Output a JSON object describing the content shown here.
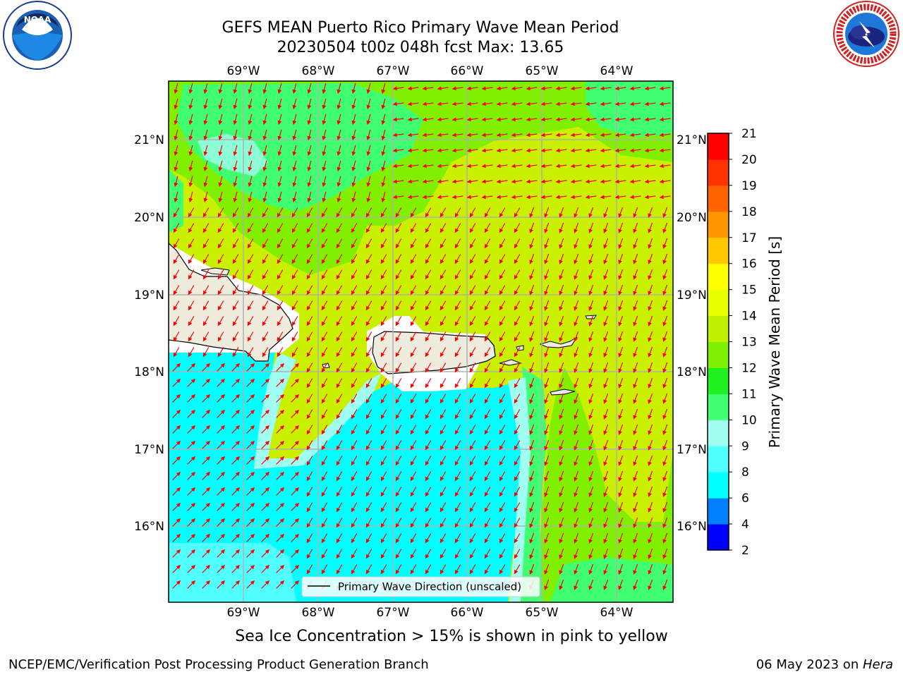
{
  "title": {
    "line1": "GEFS MEAN Puerto Rico Primary Wave Mean Period",
    "line2": "20230504 t00z 048h fcst   Max: 13.65"
  },
  "logos": {
    "left": "noa-logo",
    "right": "nws-logo"
  },
  "map": {
    "lon_labels": [
      "69°W",
      "68°W",
      "67°W",
      "66°W",
      "65°W",
      "64°W"
    ],
    "lat_labels": [
      "21°N",
      "20°N",
      "19°N",
      "18°N",
      "17°N",
      "16°N"
    ],
    "legend_text": "Primary Wave Direction (unscaled)",
    "arrow_color": "#ff0000",
    "land_color": "#efecde"
  },
  "colorbar": {
    "label": "Primary Wave Mean Period [s]",
    "ticks": [
      "2",
      "4",
      "6",
      "8",
      "9",
      "10",
      "11",
      "12",
      "13",
      "14",
      "15",
      "16",
      "17",
      "18",
      "19",
      "20",
      "21"
    ],
    "colors": [
      "#0000ff",
      "#0080ff",
      "#00ffff",
      "#50ffff",
      "#a0fff0",
      "#40ff70",
      "#20f020",
      "#80f000",
      "#c0f000",
      "#e8ff00",
      "#ffff00",
      "#ffc800",
      "#ff9600",
      "#ff6400",
      "#ff3200",
      "#ff0000"
    ]
  },
  "sea_ice_note": "Sea Ice Concentration > 15% is shown in pink to yellow",
  "footer": {
    "left": "NCEP/EMC/Verification Post Processing Product Generation Branch",
    "date": "06 May 2023 on ",
    "machine": "Hera"
  }
}
